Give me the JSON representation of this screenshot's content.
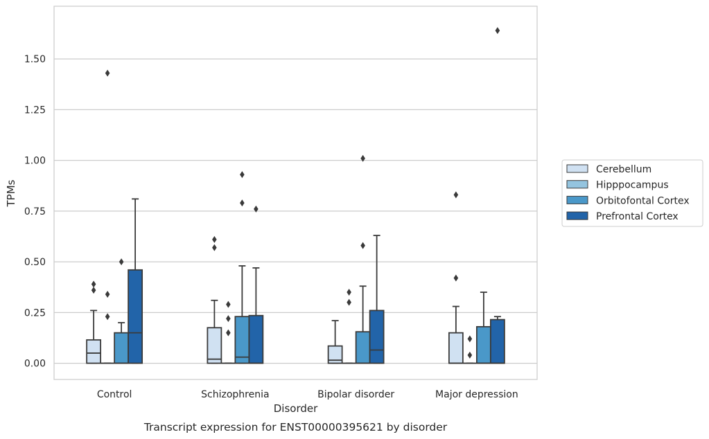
{
  "chart_data": {
    "type": "box",
    "title": "",
    "caption": "Transcript expression for ENST00000395621 by disorder",
    "xlabel": "Disorder",
    "ylabel": "TPMs",
    "ylim": [
      -0.08,
      1.76
    ],
    "yticks": [
      0.0,
      0.25,
      0.5,
      0.75,
      1.0,
      1.25,
      1.5
    ],
    "ytick_labels": [
      "0.00",
      "0.25",
      "0.50",
      "0.75",
      "1.00",
      "1.25",
      "1.50"
    ],
    "grid": true,
    "legend_position": "right",
    "categories": [
      "Control",
      "Schizophrenia",
      "Bipolar disorder",
      "Major depression"
    ],
    "series": [
      {
        "name": "Cerebellum",
        "color": "#d0e1f2",
        "boxes": [
          {
            "q1": 0.0,
            "median": 0.05,
            "q3": 0.115,
            "whislo": 0.0,
            "whishi": 0.26,
            "fliers": [
              0.36,
              0.39
            ]
          },
          {
            "q1": 0.0,
            "median": 0.02,
            "q3": 0.175,
            "whislo": 0.0,
            "whishi": 0.31,
            "fliers": [
              0.57,
              0.61
            ]
          },
          {
            "q1": 0.0,
            "median": 0.015,
            "q3": 0.085,
            "whislo": 0.0,
            "whishi": 0.21,
            "fliers": []
          },
          {
            "q1": 0.0,
            "median": 0.0,
            "q3": 0.15,
            "whislo": 0.0,
            "whishi": 0.28,
            "fliers": [
              0.42,
              0.83
            ]
          }
        ]
      },
      {
        "name": "Hipppocampus",
        "color": "#94c4df",
        "boxes": [
          {
            "q1": 0.0,
            "median": 0.0,
            "q3": 0.0,
            "whislo": 0.0,
            "whishi": 0.0,
            "fliers": [
              0.23,
              0.34,
              1.43
            ]
          },
          {
            "q1": 0.0,
            "median": 0.0,
            "q3": 0.0,
            "whislo": 0.0,
            "whishi": 0.0,
            "fliers": [
              0.15,
              0.22,
              0.29
            ]
          },
          {
            "q1": 0.0,
            "median": 0.0,
            "q3": 0.0,
            "whislo": 0.0,
            "whishi": 0.0,
            "fliers": [
              0.3,
              0.35
            ]
          },
          {
            "q1": 0.0,
            "median": 0.0,
            "q3": 0.0,
            "whislo": 0.0,
            "whishi": 0.0,
            "fliers": [
              0.04,
              0.12
            ]
          }
        ]
      },
      {
        "name": "Orbitofontal Cortex",
        "color": "#4a98c9",
        "boxes": [
          {
            "q1": 0.0,
            "median": 0.0,
            "q3": 0.15,
            "whislo": 0.0,
            "whishi": 0.2,
            "fliers": [
              0.5
            ]
          },
          {
            "q1": 0.0,
            "median": 0.03,
            "q3": 0.23,
            "whislo": 0.0,
            "whishi": 0.48,
            "fliers": [
              0.79,
              0.93
            ]
          },
          {
            "q1": 0.0,
            "median": 0.0,
            "q3": 0.155,
            "whislo": 0.0,
            "whishi": 0.38,
            "fliers": [
              0.58,
              1.01
            ]
          },
          {
            "q1": 0.0,
            "median": 0.0,
            "q3": 0.18,
            "whislo": 0.0,
            "whishi": 0.35,
            "fliers": []
          }
        ]
      },
      {
        "name": "Prefrontal Cortex",
        "color": "#2264a9",
        "boxes": [
          {
            "q1": 0.0,
            "median": 0.15,
            "q3": 0.46,
            "whislo": 0.0,
            "whishi": 0.81,
            "fliers": []
          },
          {
            "q1": 0.0,
            "median": 0.0,
            "q3": 0.235,
            "whislo": 0.0,
            "whishi": 0.47,
            "fliers": [
              0.76
            ]
          },
          {
            "q1": 0.0,
            "median": 0.065,
            "q3": 0.26,
            "whislo": 0.0,
            "whishi": 0.63,
            "fliers": []
          },
          {
            "q1": 0.0,
            "median": 0.0,
            "q3": 0.215,
            "whislo": 0.0,
            "whishi": 0.23,
            "fliers": [
              1.64
            ]
          }
        ]
      }
    ]
  }
}
